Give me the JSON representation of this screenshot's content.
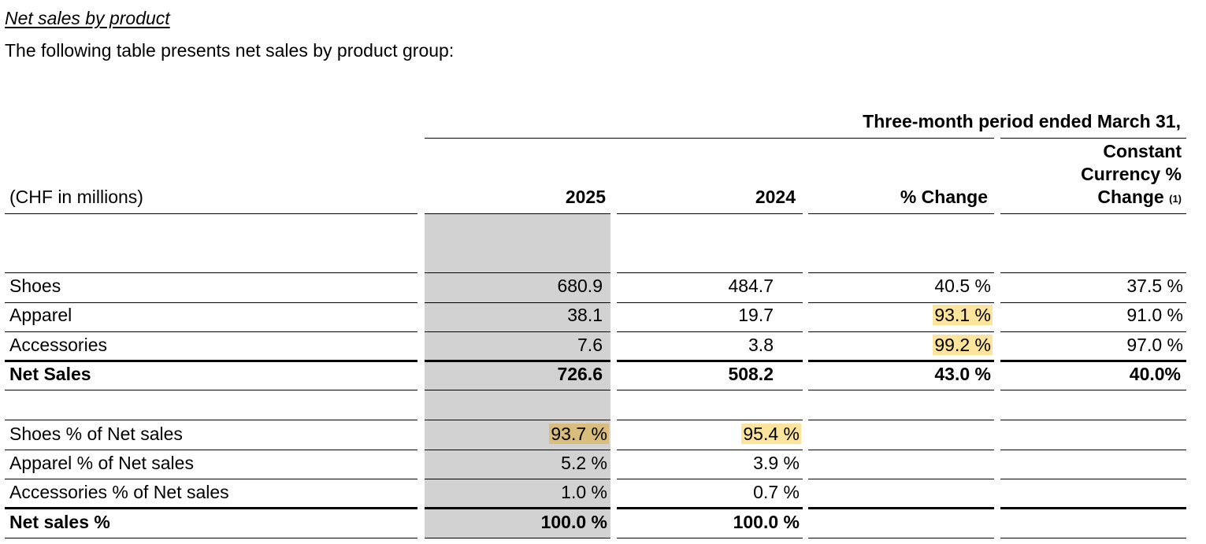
{
  "heading": "Net sales by product",
  "intro": "The following table presents net sales by product group:",
  "table": {
    "period_header": "Three-month period ended March 31,",
    "unit_label": "(CHF in millions)",
    "columns": {
      "y2025": "2025",
      "y2024": "2024",
      "pct_change": "% Change",
      "cc_line1": "Constant",
      "cc_line2": "Currency %",
      "cc_line3": "Change",
      "cc_note": "(1)"
    },
    "sales_rows": [
      {
        "label": "Shoes",
        "y2025": "680.9",
        "y2024": "484.7",
        "pct_change": "40.5 %",
        "cc_change": "37.5 %"
      },
      {
        "label": "Apparel",
        "y2025": "38.1",
        "y2024": "19.7",
        "pct_change": "93.1 %",
        "cc_change": "91.0 %"
      },
      {
        "label": "Accessories",
        "y2025": "7.6",
        "y2024": "3.8",
        "pct_change": "99.2 %",
        "cc_change": "97.0 %"
      }
    ],
    "net_sales": {
      "label": "Net Sales",
      "y2025": "726.6",
      "y2024": "508.2",
      "pct_change": "43.0 %",
      "cc_change": "40.0%"
    },
    "share_rows": [
      {
        "label": "Shoes % of Net sales",
        "y2025": "93.7 %",
        "y2024": "95.4 %"
      },
      {
        "label": "Apparel % of Net sales",
        "y2025": "5.2 %",
        "y2024": "3.9 %"
      },
      {
        "label": "Accessories % of Net sales",
        "y2025": "1.0 %",
        "y2024": "0.7 %"
      }
    ],
    "net_sales_pct": {
      "label": "Net sales %",
      "y2025": "100.0 %",
      "y2024": "100.0 %"
    }
  },
  "colors": {
    "shaded_column": "#d2d2d2",
    "highlight": "#fde49c",
    "highlight_on_shade": "#d9bd7d"
  }
}
